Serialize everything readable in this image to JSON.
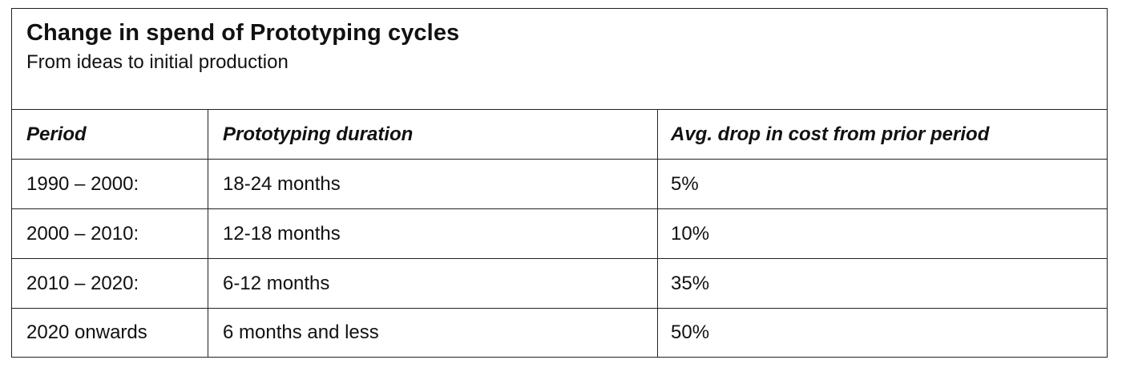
{
  "title": "Change in spend of Prototyping cycles",
  "subtitle": "From ideas to initial production",
  "columns": [
    "Period",
    "Prototyping duration",
    "Avg. drop in cost from prior period"
  ],
  "rows": [
    [
      "1990 – 2000:",
      "18-24 months",
      "5%"
    ],
    [
      "2000 – 2010:",
      "12-18 months",
      "10%"
    ],
    [
      "2010 – 2020:",
      "6-12 months",
      "35%"
    ],
    [
      "2020 onwards",
      "6 months and less",
      "50%"
    ]
  ],
  "chart_data": {
    "type": "table",
    "title": "Change in spend of Prototyping cycles",
    "subtitle": "From ideas to initial production",
    "columns": [
      "Period",
      "Prototyping duration",
      "Avg. drop in cost from prior period"
    ],
    "rows": [
      [
        "1990 – 2000:",
        "18-24 months",
        "5%"
      ],
      [
        "2000 – 2010:",
        "12-18 months",
        "10%"
      ],
      [
        "2010 – 2020:",
        "6-12 months",
        "35%"
      ],
      [
        "2020 onwards",
        "6 months and less",
        "50%"
      ]
    ]
  }
}
